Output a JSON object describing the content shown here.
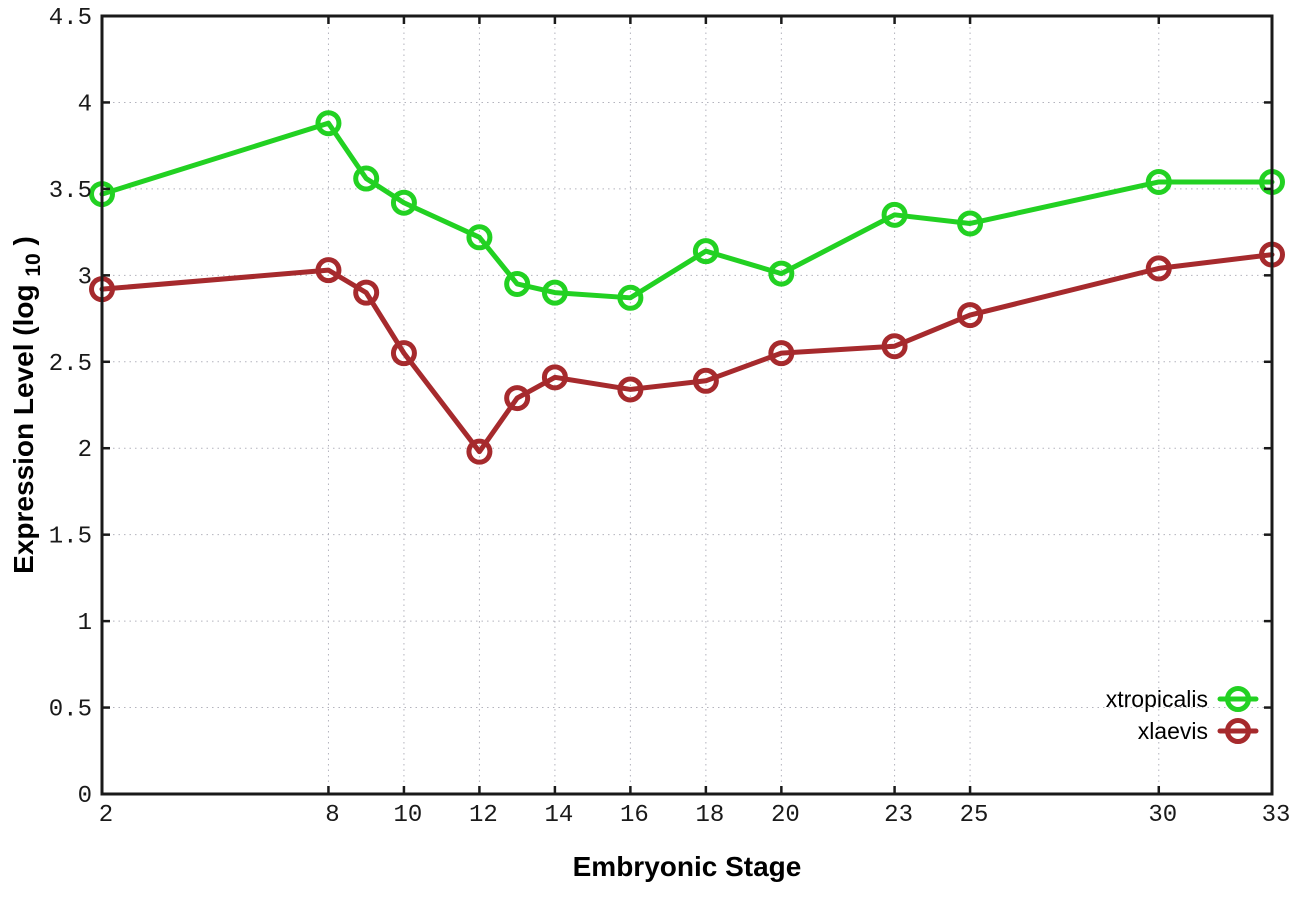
{
  "chart_data": {
    "type": "line",
    "title": "",
    "xlabel": "Embryonic Stage",
    "ylabel": "Expression Level (log10)",
    "ylabel_parts": {
      "prefix": "Expression Level (log",
      "sub": "10",
      "suffix": ")"
    },
    "xlim": [
      2,
      33
    ],
    "ylim": [
      0,
      4.5
    ],
    "grid": true,
    "marker": "open-circle",
    "legend_position": "bottom-right",
    "axis_color": "#1a1a1a",
    "grid_color": "#b3b3bd",
    "x": [
      2,
      8,
      9,
      10,
      12,
      13,
      14,
      16,
      18,
      20,
      23,
      25,
      30,
      33
    ],
    "series": [
      {
        "name": "xtropicalis",
        "color": "#22d122",
        "values": [
          3.47,
          3.88,
          3.56,
          3.42,
          3.22,
          2.95,
          2.9,
          2.87,
          3.14,
          3.01,
          3.35,
          3.3,
          3.54,
          3.54
        ]
      },
      {
        "name": "xlaevis",
        "color": "#a62a2d",
        "values": [
          2.92,
          3.03,
          2.9,
          2.55,
          1.98,
          2.29,
          2.41,
          2.34,
          2.39,
          2.55,
          2.59,
          2.77,
          3.04,
          3.12
        ]
      }
    ],
    "x_ticks": [
      {
        "value": 2,
        "label": "2"
      },
      {
        "value": 8,
        "label": "8"
      },
      {
        "value": 10,
        "label": "10"
      },
      {
        "value": 12,
        "label": "12"
      },
      {
        "value": 14,
        "label": "14"
      },
      {
        "value": 16,
        "label": "16"
      },
      {
        "value": 18,
        "label": "18"
      },
      {
        "value": 20,
        "label": "20"
      },
      {
        "value": 23,
        "label": "23"
      },
      {
        "value": 25,
        "label": "25"
      },
      {
        "value": 30,
        "label": "30"
      },
      {
        "value": 33,
        "label": "33"
      }
    ],
    "y_ticks": [
      {
        "value": 0,
        "label": "0"
      },
      {
        "value": 0.5,
        "label": "0.5"
      },
      {
        "value": 1,
        "label": "1"
      },
      {
        "value": 1.5,
        "label": "1.5"
      },
      {
        "value": 2,
        "label": "2"
      },
      {
        "value": 2.5,
        "label": "2.5"
      },
      {
        "value": 3,
        "label": "3"
      },
      {
        "value": 3.5,
        "label": "3.5"
      },
      {
        "value": 4,
        "label": "4"
      },
      {
        "value": 4.5,
        "label": "4.5"
      }
    ]
  }
}
